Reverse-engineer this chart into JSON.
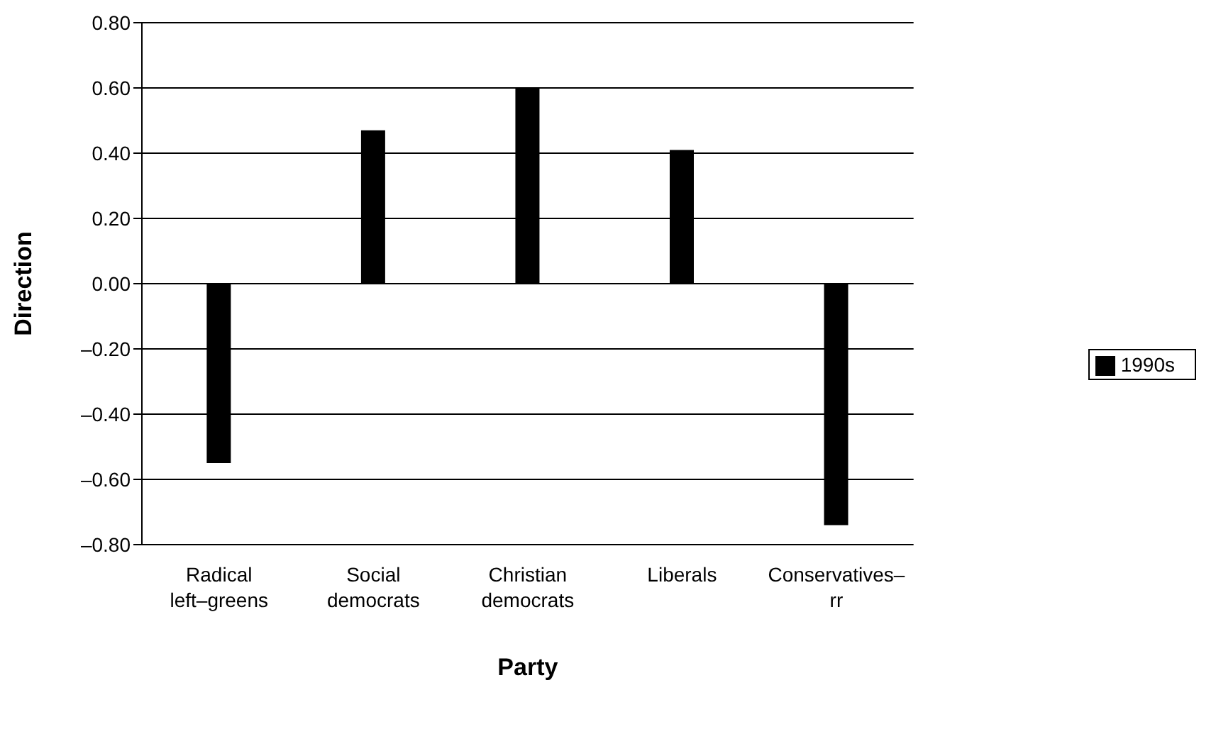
{
  "chart_data": {
    "type": "bar",
    "xlabel": "Party",
    "ylabel": "Direction",
    "categories": [
      "Radical left–greens",
      "Social democrats",
      "Christian democrats",
      "Liberals",
      "Conservatives–rr"
    ],
    "series": [
      {
        "name": "1990s",
        "color": "#000000",
        "values": [
          -0.55,
          0.47,
          0.6,
          0.41,
          -0.74
        ]
      }
    ],
    "ylim": [
      -0.8,
      0.8
    ],
    "yticks": [
      {
        "value": -0.8,
        "label": "–0.80"
      },
      {
        "value": -0.6,
        "label": "–0.60"
      },
      {
        "value": -0.4,
        "label": "–0.40"
      },
      {
        "value": -0.2,
        "label": "–0.20"
      },
      {
        "value": 0,
        "label": "0.00"
      },
      {
        "value": 0.2,
        "label": "0.20"
      },
      {
        "value": 0.4,
        "label": "0.40"
      },
      {
        "value": 0.6,
        "label": "0.60"
      },
      {
        "value": 0.8,
        "label": "0.80"
      }
    ],
    "grid": "y",
    "legend": "right"
  }
}
